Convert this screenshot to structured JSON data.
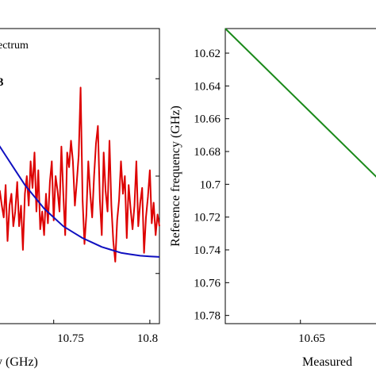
{
  "chart_data": [
    {
      "type": "line",
      "xlabel_visible": "y (GHz)",
      "ylabel": "",
      "x_ticks": [
        "10.75",
        "10.8"
      ],
      "xlim": [
        10.72,
        10.805
      ],
      "ylim": [
        0,
        1
      ],
      "legend": {
        "placement": "top-left",
        "entries": [
          "ectrum",
          "3"
        ]
      },
      "series": [
        {
          "color": "#dd0000",
          "x": [
            10.72,
            10.721,
            10.722,
            10.723,
            10.724,
            10.725,
            10.726,
            10.727,
            10.728,
            10.729,
            10.73,
            10.731,
            10.732,
            10.733,
            10.734,
            10.735,
            10.736,
            10.737,
            10.738,
            10.739,
            10.74,
            10.741,
            10.742,
            10.743,
            10.744,
            10.745,
            10.746,
            10.747,
            10.748,
            10.749,
            10.75,
            10.751,
            10.752,
            10.753,
            10.754,
            10.755,
            10.756,
            10.757,
            10.758,
            10.759,
            10.76,
            10.761,
            10.762,
            10.763,
            10.764,
            10.765,
            10.766,
            10.767,
            10.768,
            10.769,
            10.77,
            10.771,
            10.772,
            10.773,
            10.774,
            10.775,
            10.776,
            10.777,
            10.778,
            10.779,
            10.78,
            10.781,
            10.782,
            10.783,
            10.784,
            10.785,
            10.786,
            10.787,
            10.788,
            10.789,
            10.79,
            10.791,
            10.792,
            10.793,
            10.794,
            10.795,
            10.796,
            10.797,
            10.798,
            10.799,
            10.8,
            10.801,
            10.802,
            10.803,
            10.804,
            10.805
          ],
          "y": [
            0.42,
            0.38,
            0.45,
            0.4,
            0.36,
            0.47,
            0.28,
            0.4,
            0.44,
            0.33,
            0.38,
            0.48,
            0.33,
            0.4,
            0.25,
            0.44,
            0.5,
            0.4,
            0.55,
            0.46,
            0.58,
            0.38,
            0.52,
            0.32,
            0.38,
            0.3,
            0.44,
            0.34,
            0.48,
            0.55,
            0.35,
            0.5,
            0.45,
            0.38,
            0.6,
            0.44,
            0.3,
            0.58,
            0.53,
            0.62,
            0.55,
            0.4,
            0.48,
            0.57,
            0.8,
            0.42,
            0.27,
            0.37,
            0.55,
            0.44,
            0.36,
            0.5,
            0.61,
            0.67,
            0.42,
            0.3,
            0.58,
            0.45,
            0.38,
            0.62,
            0.4,
            0.28,
            0.21,
            0.35,
            0.42,
            0.55,
            0.44,
            0.5,
            0.29,
            0.47,
            0.39,
            0.32,
            0.4,
            0.55,
            0.33,
            0.41,
            0.46,
            0.24,
            0.36,
            0.43,
            0.52,
            0.34,
            0.41,
            0.3,
            0.37,
            0.33
          ]
        },
        {
          "color": "#1010c0",
          "x": [
            10.72,
            10.725,
            10.73,
            10.735,
            10.74,
            10.745,
            10.75,
            10.755,
            10.76,
            10.765,
            10.77,
            10.775,
            10.78,
            10.785,
            10.79,
            10.795,
            10.8,
            10.805
          ],
          "y": [
            0.62,
            0.57,
            0.52,
            0.47,
            0.43,
            0.39,
            0.36,
            0.33,
            0.31,
            0.29,
            0.275,
            0.26,
            0.25,
            0.24,
            0.235,
            0.23,
            0.228,
            0.226
          ]
        }
      ]
    },
    {
      "type": "line",
      "xlabel_visible": "Measured",
      "ylabel": "Reference frequency (GHz)",
      "x_ticks": [
        "10.65"
      ],
      "y_ticks": [
        "10.62",
        "10.64",
        "10.66",
        "10.68",
        "10.7",
        "10.72",
        "10.74",
        "10.76",
        "10.78"
      ],
      "xlim": [
        10.605,
        10.7
      ],
      "ylim": [
        10.605,
        10.785
      ],
      "y_reversed": true,
      "series": [
        {
          "color": "#1a8a1a",
          "x": [
            10.605,
            10.7
          ],
          "y": [
            10.605,
            10.7
          ]
        }
      ]
    }
  ]
}
